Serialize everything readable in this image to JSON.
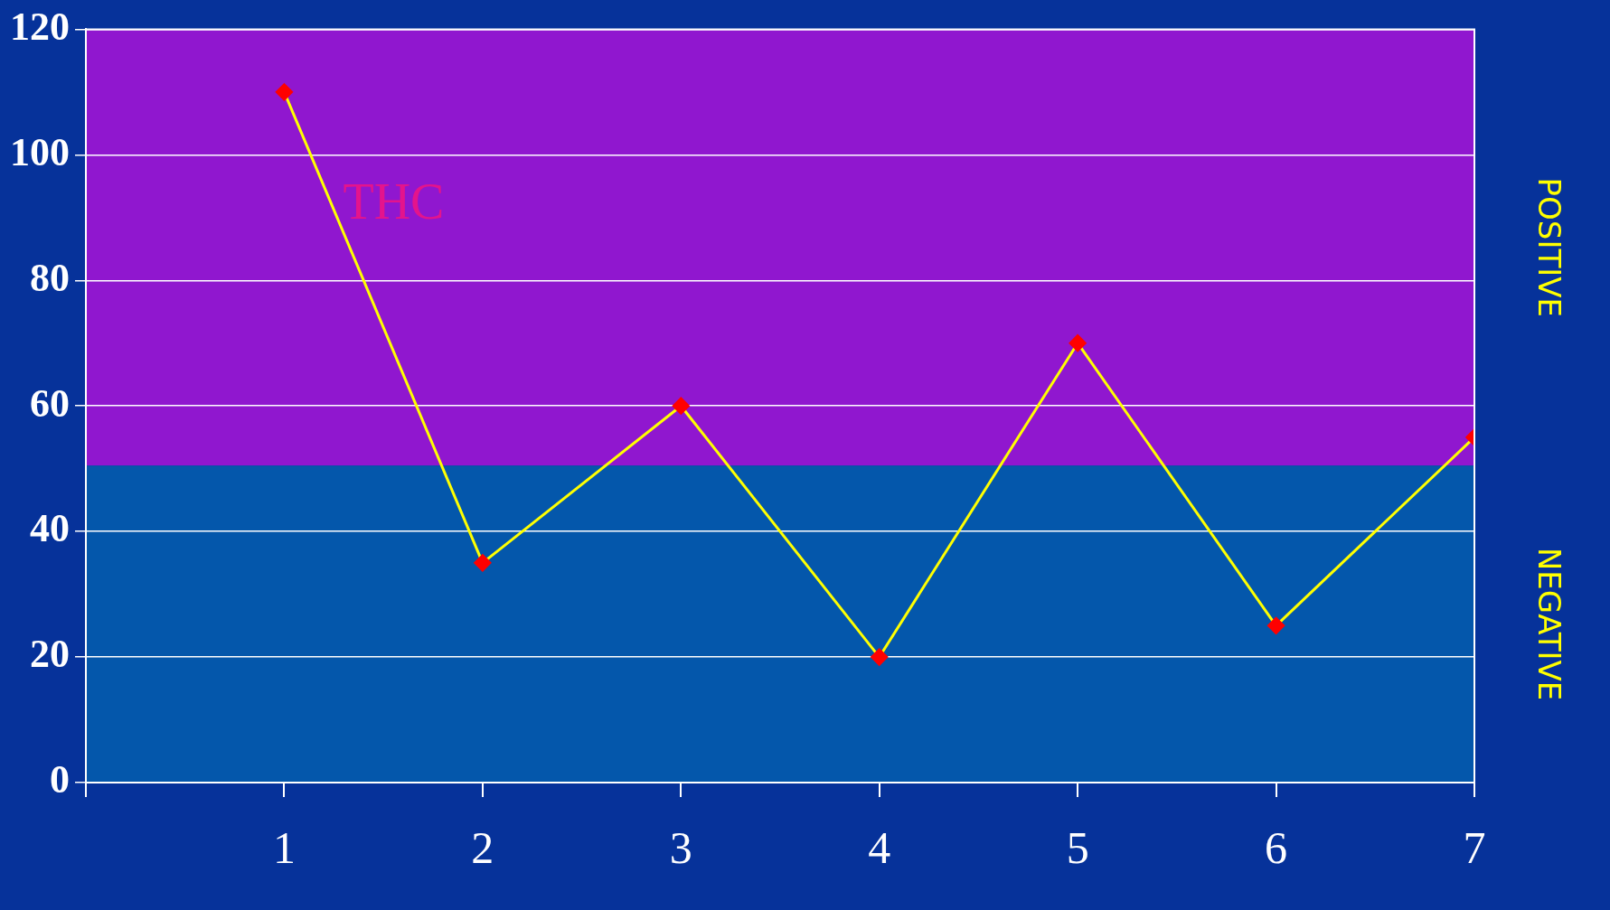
{
  "chart_data": {
    "type": "line",
    "x": [
      1,
      2,
      3,
      4,
      5,
      6,
      7
    ],
    "series": [
      {
        "name": "THC",
        "color": "#ffff00",
        "values": [
          110,
          35,
          60,
          20,
          70,
          25,
          55
        ]
      }
    ],
    "marker": "diamond",
    "xlim": [
      0,
      7
    ],
    "xticks": [
      {
        "value": 0,
        "label": null
      },
      1,
      2,
      3,
      4,
      5,
      6,
      7
    ],
    "ylim": [
      0,
      120
    ],
    "yticks": [
      0,
      20,
      40,
      60,
      80,
      100,
      120
    ],
    "grid": "y",
    "legend": false,
    "bands": [
      {
        "axis": "y",
        "from": 50.5,
        "to": 120,
        "label": "POSITIVE",
        "color": "#9017cf"
      },
      {
        "axis": "y",
        "from": 0,
        "to": 50.5,
        "label": "NEGATIVE",
        "color": "#0457ab"
      }
    ]
  }
}
